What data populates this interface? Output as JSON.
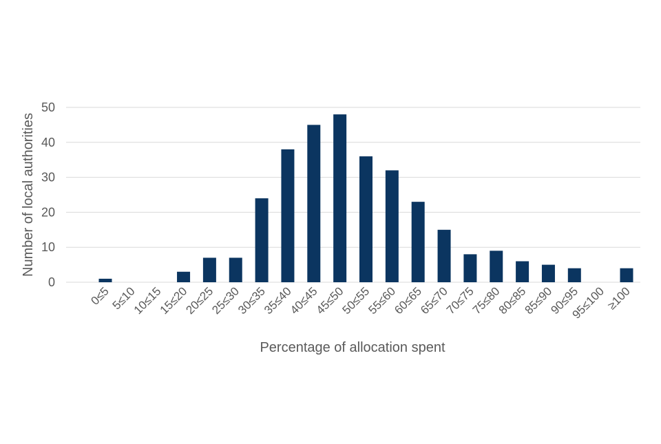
{
  "chart_data": {
    "type": "bar",
    "title": "",
    "xlabel": "Percentage of allocation spent",
    "ylabel": "Number of local authorities",
    "categories": [
      "0≤5",
      "5≤10",
      "10≤15",
      "15≤20",
      "20≤25",
      "25≤30",
      "30≤35",
      "35≤40",
      "40≤45",
      "45≤50",
      "50≤55",
      "55≤60",
      "60≤65",
      "65≤70",
      "70≤75",
      "75≤80",
      "80≤85",
      "85≤90",
      "90≤95",
      "95≤100",
      "≥100"
    ],
    "values": [
      1,
      0,
      0,
      3,
      7,
      7,
      24,
      38,
      45,
      48,
      36,
      32,
      23,
      15,
      8,
      9,
      6,
      5,
      4,
      0,
      4
    ],
    "ylim": [
      0,
      50
    ],
    "yticks": [
      0,
      10,
      20,
      30,
      40,
      50
    ],
    "grid": true,
    "legend": "none",
    "bar_color": "#0b3560",
    "grid_color": "#d9d9d9"
  }
}
